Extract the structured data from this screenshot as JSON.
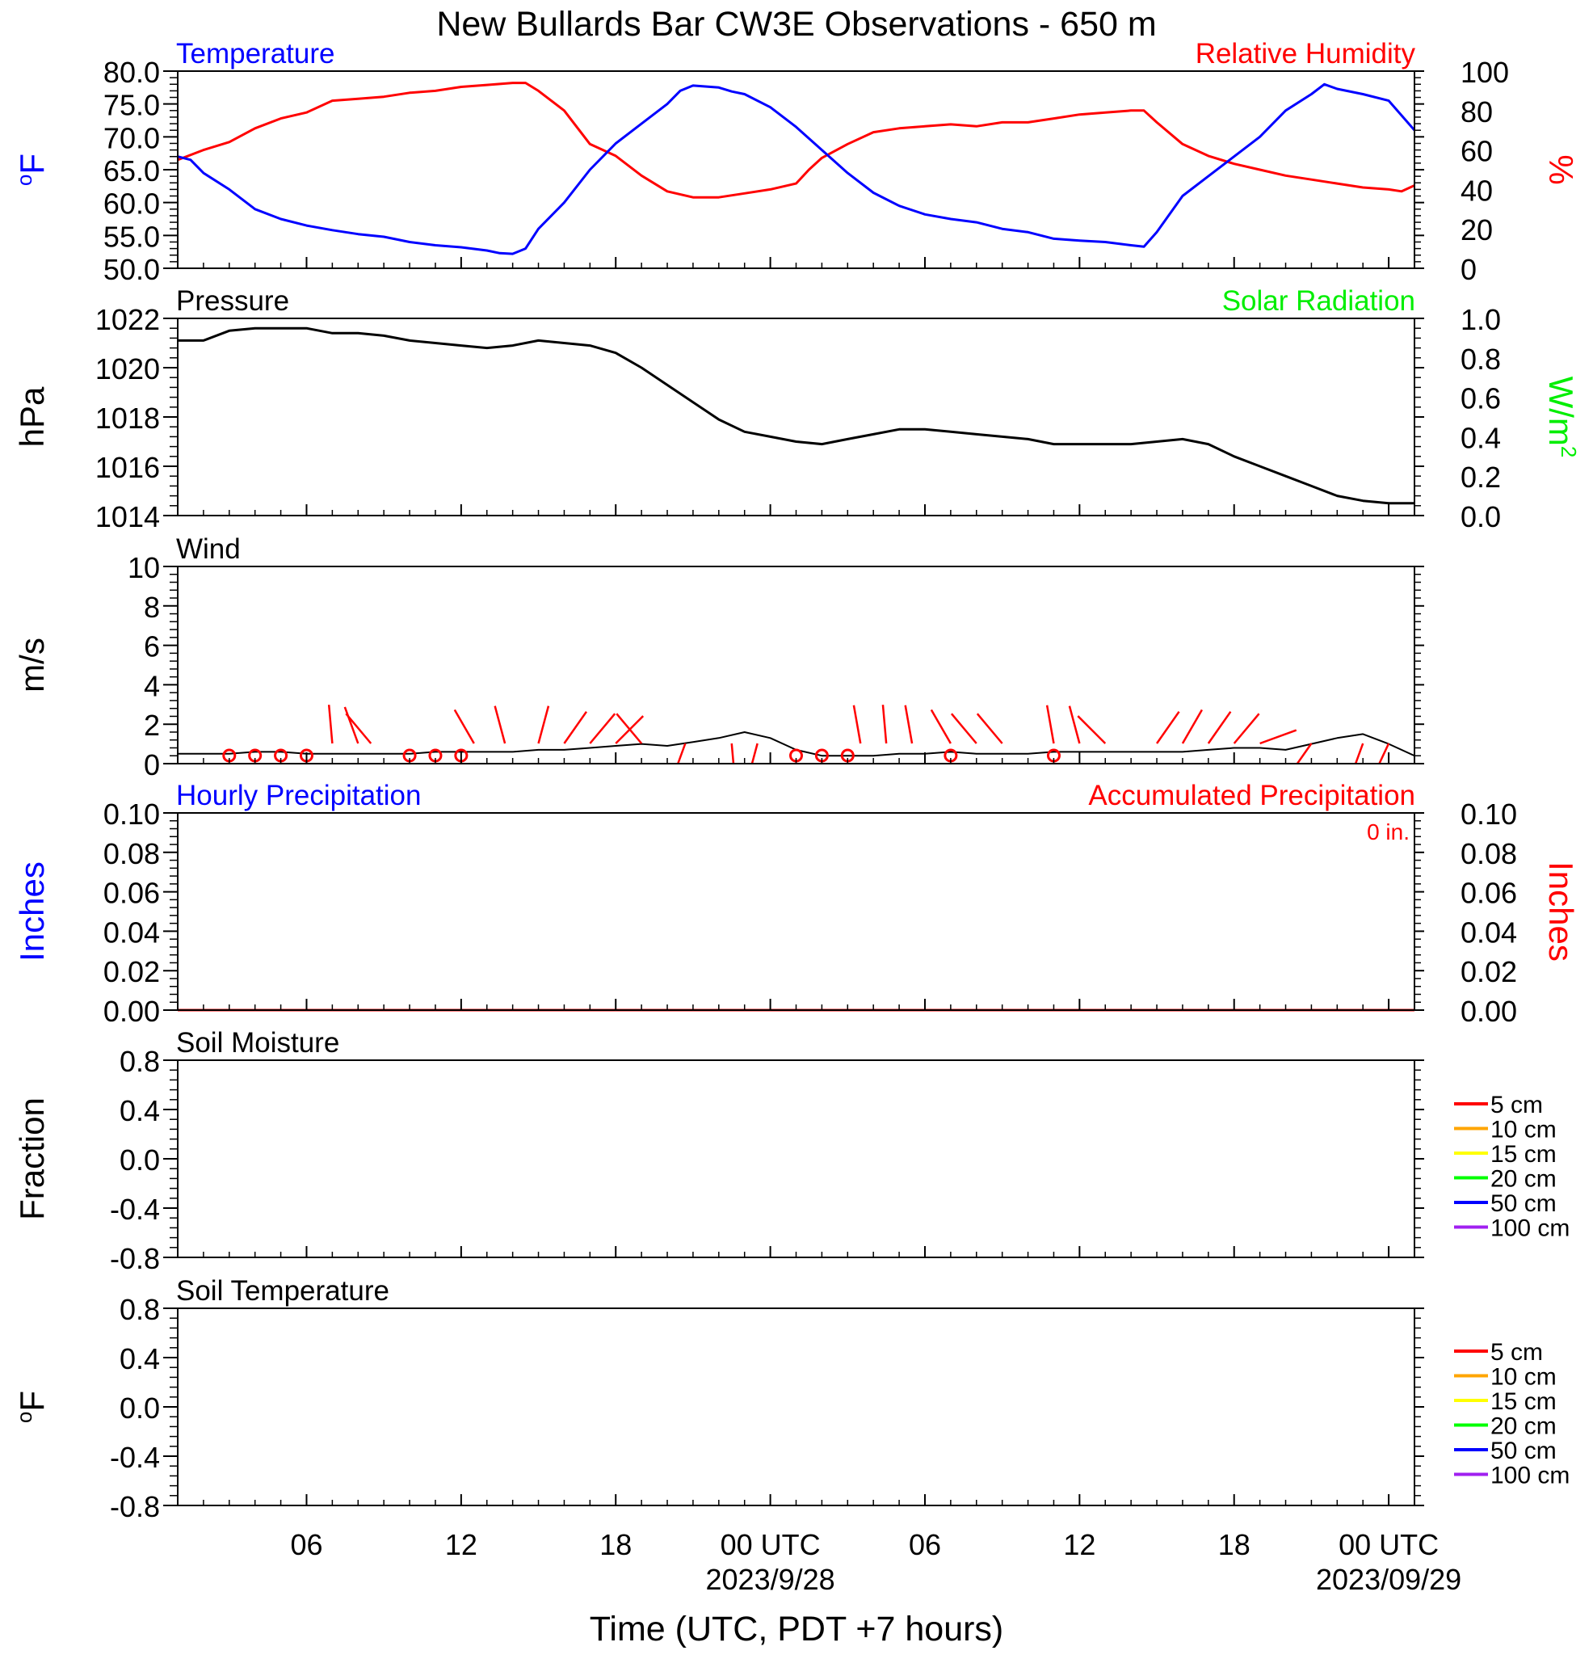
{
  "title": "New Bullards Bar CW3E Observations - 650 m",
  "colors": {
    "temperature": "#0000ff",
    "humidity": "#ff0000",
    "pressure": "#000000",
    "solar": "#00ee00",
    "wind_speed": "#000000",
    "wind_barb": "#ff0000",
    "precip_hourly": "#0000ff",
    "precip_accum": "#ff0000"
  },
  "x_axis": {
    "label": "Time (UTC, PDT +7 hours)",
    "range_hours": [
      0,
      48
    ],
    "ticks": [
      {
        "hour": 5,
        "label": "06"
      },
      {
        "hour": 11,
        "label": "12"
      },
      {
        "hour": 17,
        "label": "18"
      },
      {
        "hour": 23,
        "label": "00 UTC",
        "sublabel": "2023/9/28"
      },
      {
        "hour": 29,
        "label": "06"
      },
      {
        "hour": 35,
        "label": "12"
      },
      {
        "hour": 41,
        "label": "18"
      },
      {
        "hour": 47,
        "label": "00 UTC",
        "sublabel": "2023/09/29"
      }
    ]
  },
  "soil_legend": [
    {
      "label": "5 cm",
      "color": "#ff0000"
    },
    {
      "label": "10 cm",
      "color": "#ffa500"
    },
    {
      "label": "15 cm",
      "color": "#ffff00"
    },
    {
      "label": "20 cm",
      "color": "#00ff00"
    },
    {
      "label": "50 cm",
      "color": "#0000ff"
    },
    {
      "label": "100 cm",
      "color": "#a020f0"
    }
  ],
  "panels": [
    {
      "id": "temp-rh",
      "left_title": "Temperature",
      "right_title": "Relative Humidity",
      "left_unit": "oF",
      "right_unit": "%",
      "left_ticks": [
        "80.0",
        "75.0",
        "70.0",
        "65.0",
        "60.0",
        "55.0",
        "50.0"
      ],
      "right_ticks": [
        "100",
        "80",
        "60",
        "40",
        "20",
        "0"
      ]
    },
    {
      "id": "pressure",
      "left_title": "Pressure",
      "right_title": "Solar Radiation",
      "left_unit": "hPa",
      "right_unit": "W/m2",
      "left_ticks": [
        "1022",
        "1020",
        "1018",
        "1016",
        "1014"
      ],
      "right_ticks": [
        "1.0",
        "0.8",
        "0.6",
        "0.4",
        "0.2",
        "0.0"
      ]
    },
    {
      "id": "wind",
      "left_title": "Wind",
      "left_unit": "m/s",
      "left_ticks": [
        "10",
        "8",
        "6",
        "4",
        "2",
        "0"
      ]
    },
    {
      "id": "precip",
      "left_title": "Hourly Precipitation",
      "right_title": "Accumulated Precipitation",
      "annotation": "0 in.",
      "left_unit": "Inches",
      "right_unit": "Inches",
      "left_ticks": [
        "0.10",
        "0.08",
        "0.06",
        "0.04",
        "0.02",
        "0.00"
      ],
      "right_ticks": [
        "0.10",
        "0.08",
        "0.06",
        "0.04",
        "0.02",
        "0.00"
      ]
    },
    {
      "id": "soil-moisture",
      "left_title": "Soil Moisture",
      "left_unit": "Fraction",
      "left_ticks": [
        "0.8",
        "0.4",
        "0.0",
        "-0.4",
        "-0.8"
      ]
    },
    {
      "id": "soil-temp",
      "left_title": "Soil Temperature",
      "left_unit": "oF",
      "left_ticks": [
        "0.8",
        "0.4",
        "0.0",
        "-0.4",
        "-0.8"
      ]
    }
  ],
  "chart_data": {
    "type": "line",
    "x_unit": "hours from 2023-09-27 01 UTC",
    "temperature_f": {
      "ylim": [
        50,
        80
      ],
      "x": [
        0,
        0.5,
        1,
        2,
        3,
        4,
        5,
        6,
        7,
        8,
        9,
        10,
        11,
        12,
        12.5,
        13,
        13.5,
        14,
        15,
        16,
        17,
        18,
        19,
        19.5,
        20,
        21,
        21.5,
        22,
        23,
        24,
        25,
        26,
        27,
        28,
        29,
        30,
        31,
        32,
        33,
        34,
        35,
        36,
        37,
        37.5,
        38,
        39,
        40,
        41,
        42,
        43,
        44,
        44.5,
        45,
        46,
        47,
        48
      ],
      "y": [
        67.0,
        66.5,
        64.5,
        62.0,
        59.0,
        57.5,
        56.5,
        55.8,
        55.2,
        54.8,
        54.0,
        53.5,
        53.2,
        52.7,
        52.3,
        52.2,
        53.0,
        56.0,
        60.0,
        65.0,
        69.0,
        72.0,
        75.0,
        77.0,
        77.8,
        77.5,
        76.9,
        76.5,
        74.5,
        71.5,
        68.0,
        64.5,
        61.5,
        59.5,
        58.2,
        57.5,
        57.0,
        56.0,
        55.5,
        54.5,
        54.2,
        54.0,
        53.5,
        53.3,
        55.5,
        61.0,
        64.0,
        67.0,
        70.0,
        74.0,
        76.5,
        78.0,
        77.3,
        76.5,
        75.5,
        71.0
      ]
    },
    "relative_humidity_pct": {
      "ylim": [
        0,
        100
      ],
      "x": [
        0,
        1,
        2,
        3,
        4,
        5,
        6,
        7,
        8,
        9,
        10,
        11,
        12,
        13,
        13.5,
        14,
        15,
        16,
        17,
        18,
        19,
        20,
        21,
        22,
        23,
        24,
        24.5,
        25,
        26,
        27,
        28,
        29,
        30,
        31,
        32,
        33,
        34,
        35,
        36,
        37,
        37.5,
        38,
        39,
        40,
        41,
        42,
        43,
        44,
        45,
        46,
        47,
        47.5,
        48
      ],
      "y": [
        55,
        60,
        64,
        71,
        76,
        79,
        85,
        86,
        87,
        89,
        90,
        92,
        93,
        94,
        94,
        90,
        80,
        63,
        57,
        47,
        39,
        36,
        36,
        38,
        40,
        43,
        50,
        56,
        63,
        69,
        71,
        72,
        73,
        72,
        74,
        74,
        76,
        78,
        79,
        80,
        80,
        74,
        63,
        57,
        53,
        50,
        47,
        45,
        43,
        41,
        40,
        39,
        42
      ]
    },
    "pressure_hpa": {
      "ylim": [
        1014,
        1022
      ],
      "x": [
        0,
        1,
        2,
        3,
        4,
        5,
        6,
        7,
        8,
        9,
        10,
        11,
        12,
        13,
        14,
        15,
        16,
        17,
        18,
        19,
        20,
        21,
        22,
        23,
        24,
        25,
        26,
        27,
        28,
        29,
        30,
        31,
        32,
        33,
        34,
        35,
        36,
        37,
        38,
        39,
        40,
        41,
        42,
        43,
        44,
        45,
        46,
        47,
        48
      ],
      "y": [
        1021.1,
        1021.1,
        1021.5,
        1021.6,
        1021.6,
        1021.6,
        1021.4,
        1021.4,
        1021.3,
        1021.1,
        1021.0,
        1020.9,
        1020.8,
        1020.9,
        1021.1,
        1021.0,
        1020.9,
        1020.6,
        1020.0,
        1019.3,
        1018.6,
        1017.9,
        1017.4,
        1017.2,
        1017.0,
        1016.9,
        1017.1,
        1017.3,
        1017.5,
        1017.5,
        1017.4,
        1017.3,
        1017.2,
        1017.1,
        1016.9,
        1016.9,
        1016.9,
        1016.9,
        1017.0,
        1017.1,
        1016.9,
        1016.4,
        1016.0,
        1015.6,
        1015.2,
        1014.8,
        1014.6,
        1014.5,
        1014.5
      ]
    },
    "solar_radiation_wm2": {
      "ylim": [
        0,
        1
      ],
      "x": [],
      "y": []
    },
    "wind_speed_ms": {
      "ylim": [
        0,
        10
      ],
      "x": [
        0,
        1,
        2,
        3,
        4,
        5,
        6,
        7,
        8,
        9,
        10,
        11,
        12,
        13,
        14,
        15,
        16,
        17,
        18,
        19,
        20,
        21,
        22,
        23,
        24,
        25,
        26,
        27,
        28,
        29,
        30,
        31,
        32,
        33,
        34,
        35,
        36,
        37,
        38,
        39,
        40,
        41,
        42,
        43,
        44,
        45,
        46,
        47,
        48
      ],
      "y": [
        0.5,
        0.5,
        0.5,
        0.6,
        0.6,
        0.5,
        0.5,
        0.5,
        0.5,
        0.5,
        0.6,
        0.6,
        0.6,
        0.6,
        0.7,
        0.7,
        0.8,
        0.9,
        1.0,
        0.9,
        1.1,
        1.3,
        1.6,
        1.3,
        0.7,
        0.4,
        0.4,
        0.4,
        0.5,
        0.5,
        0.6,
        0.5,
        0.5,
        0.5,
        0.6,
        0.6,
        0.6,
        0.6,
        0.6,
        0.6,
        0.7,
        0.8,
        0.8,
        0.7,
        1.0,
        1.3,
        1.5,
        1.0,
        0.4
      ],
      "barbs": [
        {
          "x": 6,
          "dir": 355
        },
        {
          "x": 7,
          "dir": 340
        },
        {
          "x": 7.5,
          "dir": 320
        },
        {
          "x": 11.5,
          "dir": 330
        },
        {
          "x": 12.7,
          "dir": 345
        },
        {
          "x": 14,
          "dir": 15
        },
        {
          "x": 15,
          "dir": 35
        },
        {
          "x": 16,
          "dir": 40
        },
        {
          "x": 17,
          "dir": 45
        },
        {
          "x": 18,
          "dir": 320
        },
        {
          "x": 19.7,
          "dir": 200
        },
        {
          "x": 21.5,
          "dir": 175
        },
        {
          "x": 22.5,
          "dir": 195
        },
        {
          "x": 26.5,
          "dir": 350
        },
        {
          "x": 27.5,
          "dir": 355
        },
        {
          "x": 28.5,
          "dir": 350
        },
        {
          "x": 30,
          "dir": 330
        },
        {
          "x": 31,
          "dir": 320
        },
        {
          "x": 32,
          "dir": 320
        },
        {
          "x": 34,
          "dir": 350
        },
        {
          "x": 35,
          "dir": 345
        },
        {
          "x": 36,
          "dir": 315
        },
        {
          "x": 38,
          "dir": 35
        },
        {
          "x": 39,
          "dir": 30
        },
        {
          "x": 40,
          "dir": 35
        },
        {
          "x": 41,
          "dir": 40
        },
        {
          "x": 42,
          "dir": 70
        },
        {
          "x": 44,
          "dir": 215
        },
        {
          "x": 46,
          "dir": 200
        },
        {
          "x": 47,
          "dir": 205
        }
      ],
      "calm": [
        2,
        3,
        4,
        5,
        9,
        10,
        11,
        24,
        25,
        26,
        30,
        34
      ]
    },
    "precip_hourly_in": {
      "ylim": [
        0,
        0.1
      ],
      "x": [
        0,
        48
      ],
      "y": [
        0,
        0
      ]
    },
    "precip_accum_in": {
      "ylim": [
        0,
        0.1
      ],
      "x": [
        0,
        48
      ],
      "y": [
        0,
        0
      ]
    },
    "soil_moisture_fraction": {
      "ylim": [
        -1,
        1
      ],
      "series": []
    },
    "soil_temperature_f": {
      "ylim": [
        -1,
        1
      ],
      "series": []
    }
  }
}
